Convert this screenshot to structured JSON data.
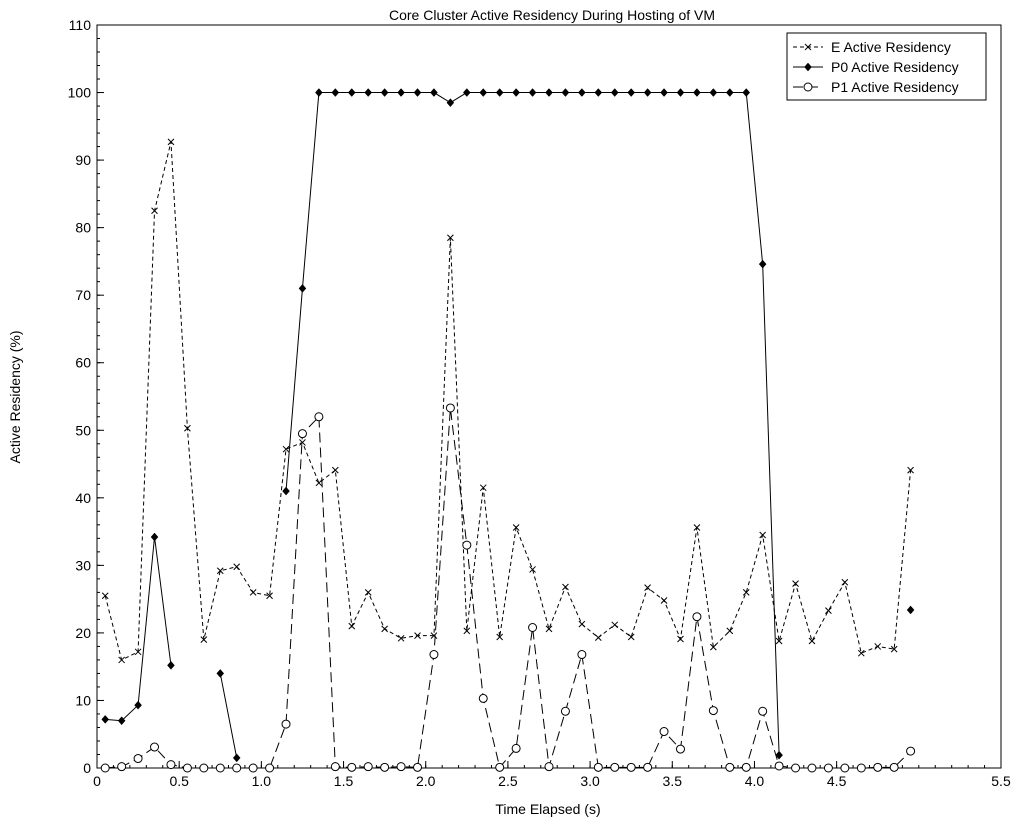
{
  "chart_data": {
    "type": "line",
    "title": "Core Cluster Active Residency During Hosting of VM",
    "xlabel": "Time Elapsed (s)",
    "ylabel": "Active Residency (%)",
    "xlim": [
      0,
      5.5
    ],
    "ylim": [
      0,
      110
    ],
    "xticks": [
      "0",
      "0.5",
      "1.0",
      "1.5",
      "2.0",
      "2.5",
      "3.0",
      "3.5",
      "4.0",
      "4.5",
      "5.5"
    ],
    "xtick_values": [
      0,
      0.5,
      1.0,
      1.5,
      2.0,
      2.5,
      3.0,
      3.5,
      4.0,
      4.5,
      5.5
    ],
    "yticks": [
      "0",
      "10",
      "20",
      "30",
      "40",
      "50",
      "60",
      "70",
      "80",
      "90",
      "100",
      "110"
    ],
    "ytick_values": [
      0,
      10,
      20,
      30,
      40,
      50,
      60,
      70,
      80,
      90,
      100,
      110
    ],
    "grid": false,
    "legend_position": "top-right",
    "x": [
      0.05,
      0.15,
      0.25,
      0.35,
      0.45,
      0.55,
      0.65,
      0.75,
      0.85,
      0.95,
      1.05,
      1.15,
      1.25,
      1.35,
      1.45,
      1.55,
      1.65,
      1.75,
      1.85,
      1.95,
      2.05,
      2.15,
      2.25,
      2.35,
      2.45,
      2.55,
      2.65,
      2.75,
      2.85,
      2.95,
      3.05,
      3.15,
      3.25,
      3.35,
      3.45,
      3.55,
      3.65,
      3.75,
      3.85,
      3.95,
      4.05,
      4.15,
      4.25,
      4.35,
      4.45,
      4.55,
      4.65,
      4.75,
      4.85,
      4.95
    ],
    "series": [
      {
        "name": "E Active Residency",
        "marker": "x",
        "line": "dash",
        "values": [
          25.5,
          16,
          17.2,
          82.5,
          92.7,
          50.3,
          19,
          29.2,
          29.8,
          26,
          25.5,
          47.2,
          48.2,
          42.2,
          44.1,
          21,
          26,
          20.6,
          19.2,
          19.6,
          19.6,
          78.5,
          20.3,
          41.5,
          19.4,
          35.6,
          29.4,
          20.6,
          26.8,
          21.3,
          19.3,
          21.2,
          19.4,
          26.7,
          24.8,
          19.1,
          35.6,
          17.9,
          20.3,
          26,
          34.5,
          18.8,
          27.3,
          18.8,
          23.3,
          27.5,
          17,
          18,
          17.6,
          44.1
        ]
      },
      {
        "name": "P0 Active Residency",
        "marker": "diamond",
        "line": "solid",
        "values": [
          7.2,
          7,
          9.3,
          34.2,
          15.2,
          null,
          null,
          14,
          1.5,
          null,
          null,
          41,
          71,
          100,
          100,
          100,
          100,
          100,
          100,
          100,
          100,
          98.5,
          100,
          100,
          100,
          100,
          100,
          100,
          100,
          100,
          100,
          100,
          100,
          100,
          100,
          100,
          100,
          100,
          100,
          100,
          74.6,
          1.9,
          null,
          null,
          null,
          null,
          null,
          null,
          null,
          23.4
        ]
      },
      {
        "name": "P1 Active Residency",
        "marker": "circle",
        "line": "longdash",
        "values": [
          0,
          0.2,
          1.4,
          3.1,
          0.5,
          0,
          0,
          0,
          0,
          0,
          0,
          6.5,
          49.5,
          52,
          0.2,
          0.1,
          0.2,
          0.1,
          0.2,
          0.1,
          16.8,
          53.3,
          33,
          10.3,
          0.1,
          2.9,
          20.8,
          0.2,
          8.4,
          16.8,
          0.1,
          0.1,
          0.1,
          0.1,
          5.4,
          2.8,
          22.4,
          8.5,
          0.1,
          0.1,
          8.4,
          0.3,
          0,
          0,
          0,
          0,
          0,
          0.1,
          0.1,
          2.5
        ]
      }
    ]
  }
}
